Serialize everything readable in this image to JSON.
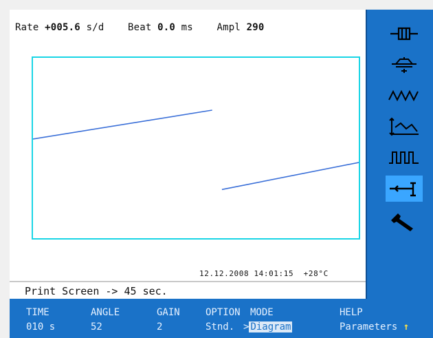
{
  "readout": {
    "rate_label": "Rate",
    "rate_value": "+005.6",
    "rate_unit": "s/d",
    "beat_label": "Beat",
    "beat_value": "0.0",
    "beat_unit": "ms",
    "ampl_label": "Ampl",
    "ampl_value": "290"
  },
  "plot_meta": "12.12.2008 14:01:15  +28°C",
  "status_message": "Print Screen -> 45 sec.",
  "tools": [
    {
      "name": "escapement-icon"
    },
    {
      "name": "balance-wheel-icon"
    },
    {
      "name": "waveform-icon"
    },
    {
      "name": "rate-graph-icon"
    },
    {
      "name": "pulse-train-icon"
    },
    {
      "name": "microphone-stand-icon"
    },
    {
      "name": "wrench-icon"
    }
  ],
  "menu": {
    "time_label": "TIME",
    "time_value": "010 s",
    "angle_label": "ANGLE",
    "angle_value": "52",
    "gain_label": "GAIN",
    "gain_value": "2",
    "option_label": "OPTION",
    "option_value": "Stnd.",
    "mode_label": "MODE",
    "mode_prefix": ">",
    "mode_value": "Diagram",
    "help_label": "HELP",
    "help_value": "Parameters",
    "help_arrow": "↑"
  },
  "colors": {
    "accent": "#1a72c8",
    "plot_border": "#19d5e6",
    "trace": "#3a6fd8"
  },
  "chart_data": {
    "type": "line",
    "series": [
      {
        "x": [
          0,
          0.55
        ],
        "y": [
          0.55,
          0.71
        ]
      },
      {
        "x": [
          0.58,
          1.0
        ],
        "y": [
          0.27,
          0.42
        ]
      }
    ],
    "xlim": [
      0,
      1
    ],
    "ylim": [
      0,
      1
    ]
  }
}
